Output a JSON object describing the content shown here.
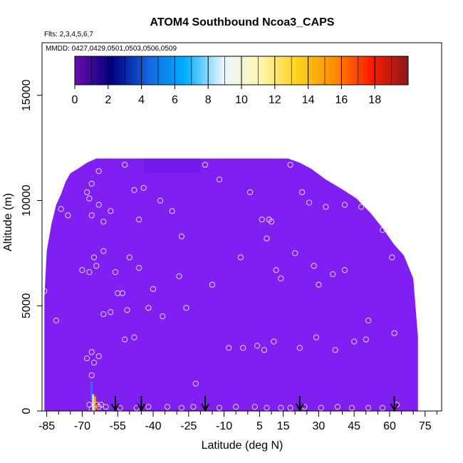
{
  "chart_data": {
    "type": "heatmap",
    "title": "ATOM4 Southbound Ncoa3_CAPS",
    "flights_note": "Flts: 2,3,4,5,6,7",
    "dates_note": "MMDD: 0427,0429,0501,0503,0506,0509",
    "xlabel": "Latitude (deg N)",
    "ylabel": "Altitude (m)",
    "xlim": [
      -87,
      82
    ],
    "ylim": [
      0,
      17500
    ],
    "x_ticks": [
      -85,
      -70,
      -55,
      -40,
      -25,
      -10,
      5,
      15,
      30,
      45,
      60,
      75
    ],
    "x_minor_ticks": [
      -80,
      -75,
      -65,
      -60,
      -50,
      -45,
      -35,
      -30,
      -20,
      -15,
      -5,
      0,
      10,
      20,
      25,
      35,
      40,
      50,
      55,
      65,
      70,
      80
    ],
    "y_ticks": [
      0,
      5000,
      10000,
      15000
    ],
    "colorbar": {
      "range": [
        0,
        20
      ],
      "tick_values": [
        0,
        2,
        4,
        6,
        8,
        10,
        12,
        14,
        16,
        18
      ],
      "colors": [
        "#6a0dad",
        "#000080",
        "#1565e0",
        "#00b0ff",
        "#e8f6ff",
        "#fff5b0",
        "#ffd21a",
        "#ff8c00",
        "#ff1a00",
        "#8b1a1a"
      ]
    },
    "field": {
      "background_value": 0.2,
      "background_color": "#7f1ff2",
      "darker_patch_color": "#7418ea",
      "darker_patch_lat": [
        -44,
        -20
      ],
      "darker_patch_alt": [
        11300,
        12000
      ],
      "envelope": [
        [
          -86,
          5400
        ],
        [
          -85,
          7600
        ],
        [
          -83,
          8900
        ],
        [
          -81,
          9800
        ],
        [
          -79,
          10300
        ],
        [
          -77,
          10900
        ],
        [
          -75,
          11300
        ],
        [
          -72,
          11500
        ],
        [
          -68,
          11800
        ],
        [
          -64,
          12000
        ],
        [
          -20,
          12000
        ],
        [
          17,
          12000
        ],
        [
          22,
          11800
        ],
        [
          27,
          11500
        ],
        [
          33,
          11000
        ],
        [
          39,
          10600
        ],
        [
          46,
          10100
        ],
        [
          52,
          9400
        ],
        [
          57,
          8700
        ],
        [
          62,
          7900
        ],
        [
          66,
          7400
        ],
        [
          70,
          6300
        ],
        [
          72,
          3500
        ],
        [
          72,
          0
        ]
      ],
      "high_values": [
        {
          "lat": -66,
          "alt_min": 500,
          "alt_max": 1400,
          "value": 6,
          "color": "#1e7be8"
        },
        {
          "lat": -65.4,
          "alt_min": 0,
          "alt_max": 800,
          "value": 9,
          "color": "#bfe3ff"
        },
        {
          "lat": -64.6,
          "alt_min": 0,
          "alt_max": 700,
          "value": 15,
          "color": "#f39c12"
        },
        {
          "lat": -63.8,
          "alt_min": 0,
          "alt_max": 400,
          "value": 17,
          "color": "#d01010"
        }
      ]
    },
    "sample_points": [
      [
        -86,
        5700
      ],
      [
        -81,
        4300
      ],
      [
        -79,
        9600
      ],
      [
        -76,
        9300
      ],
      [
        -70,
        6700
      ],
      [
        -68,
        2500
      ],
      [
        -68,
        10400
      ],
      [
        -67,
        10100
      ],
      [
        -67,
        6600
      ],
      [
        -66,
        1700
      ],
      [
        -66,
        10800
      ],
      [
        -66,
        9300
      ],
      [
        -65,
        7300
      ],
      [
        -66,
        2800
      ],
      [
        -65,
        2300
      ],
      [
        -64,
        6900
      ],
      [
        -63,
        2600
      ],
      [
        -63,
        9800
      ],
      [
        -63,
        11400
      ],
      [
        -61,
        9000
      ],
      [
        -61,
        4600
      ],
      [
        -61,
        7600
      ],
      [
        -58,
        4700
      ],
      [
        -58,
        9500
      ],
      [
        -56,
        6600
      ],
      [
        -55,
        5600
      ],
      [
        -53,
        5600
      ],
      [
        -52,
        3400
      ],
      [
        -52,
        11700
      ],
      [
        -51,
        4800
      ],
      [
        -50,
        7300
      ],
      [
        -48,
        3500
      ],
      [
        -48,
        10500
      ],
      [
        -46,
        9100
      ],
      [
        -46,
        6800
      ],
      [
        -44,
        10600
      ],
      [
        -42,
        4900
      ],
      [
        -40,
        5800
      ],
      [
        -37,
        10000
      ],
      [
        -36,
        4500
      ],
      [
        -32,
        9500
      ],
      [
        -29,
        6400
      ],
      [
        -28,
        8300
      ],
      [
        -26,
        4900
      ],
      [
        -22,
        1300
      ],
      [
        -18,
        11700
      ],
      [
        -15,
        6000
      ],
      [
        -12,
        11000
      ],
      [
        -8,
        3000
      ],
      [
        -3,
        7300
      ],
      [
        -2,
        3000
      ],
      [
        1,
        10400
      ],
      [
        4,
        3100
      ],
      [
        6,
        9100
      ],
      [
        7,
        2900
      ],
      [
        8,
        8200
      ],
      [
        9,
        9100
      ],
      [
        10,
        9000
      ],
      [
        11,
        3300
      ],
      [
        12,
        6700
      ],
      [
        14,
        6300
      ],
      [
        18,
        11700
      ],
      [
        20,
        7500
      ],
      [
        22,
        3000
      ],
      [
        23,
        10400
      ],
      [
        26,
        9900
      ],
      [
        28,
        6900
      ],
      [
        29,
        3500
      ],
      [
        30,
        6000
      ],
      [
        33,
        9700
      ],
      [
        36,
        6500
      ],
      [
        37,
        2900
      ],
      [
        41,
        6700
      ],
      [
        41,
        9800
      ],
      [
        45,
        3300
      ],
      [
        48,
        9700
      ],
      [
        50,
        3400
      ],
      [
        51,
        4300
      ],
      [
        57,
        8600
      ],
      [
        61,
        7300
      ],
      [
        62,
        3700
      ],
      [
        63,
        300
      ],
      [
        -66,
        100
      ],
      [
        -63,
        200
      ],
      [
        -60,
        200
      ],
      [
        -54,
        150
      ],
      [
        -47,
        150
      ],
      [
        -42,
        200
      ],
      [
        -34,
        200
      ],
      [
        -28,
        150
      ],
      [
        -23,
        200
      ],
      [
        -12,
        150
      ],
      [
        -5,
        200
      ],
      [
        3,
        200
      ],
      [
        8,
        150
      ],
      [
        14,
        150
      ],
      [
        18,
        150
      ],
      [
        24,
        200
      ],
      [
        31,
        150
      ],
      [
        38,
        200
      ],
      [
        44,
        150
      ],
      [
        51,
        150
      ],
      [
        57,
        150
      ],
      [
        -67,
        300
      ],
      [
        -64,
        300
      ],
      [
        -62,
        300
      ]
    ],
    "flight_markers": [
      -56,
      -45,
      -18,
      22,
      62
    ]
  }
}
